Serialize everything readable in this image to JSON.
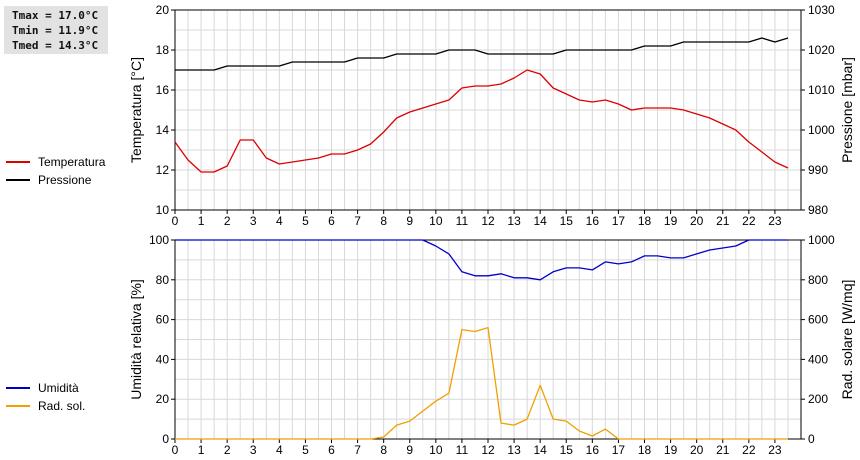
{
  "stats": {
    "tmax": "Tmax = 17.0°C",
    "tmin": "Tmin = 11.9°C",
    "tmed": "Tmed = 14.3°C"
  },
  "chart_data": [
    {
      "type": "line",
      "title": "",
      "xlabel": "",
      "x_ticks": [
        "0",
        "1",
        "2",
        "3",
        "4",
        "5",
        "6",
        "7",
        "8",
        "9",
        "10",
        "11",
        "12",
        "13",
        "14",
        "15",
        "16",
        "17",
        "18",
        "19",
        "20",
        "21",
        "22",
        "23"
      ],
      "xlim": [
        0,
        24
      ],
      "ylabel_left": "Temperatura [°C]",
      "ylim_left": [
        10,
        20
      ],
      "y_ticks_left": [
        "10",
        "12",
        "14",
        "16",
        "18",
        "20"
      ],
      "ylabel_right": "Pressione [mbar]",
      "ylim_right": [
        980,
        1030
      ],
      "y_ticks_right": [
        "980",
        "990",
        "1000",
        "1010",
        "1020",
        "1030"
      ],
      "grid": true,
      "legend_position": "left",
      "series": [
        {
          "name": "Temperatura",
          "color": "#dd0000",
          "axis": "left",
          "x": [
            0,
            0.5,
            1,
            1.5,
            2,
            2.5,
            3,
            3.5,
            4,
            4.5,
            5,
            5.5,
            6,
            6.5,
            7,
            7.5,
            8,
            8.5,
            9,
            9.5,
            10,
            10.5,
            11,
            11.5,
            12,
            12.5,
            13,
            13.5,
            14,
            14.5,
            15,
            15.5,
            16,
            16.5,
            17,
            17.5,
            18,
            18.5,
            19,
            19.5,
            20,
            20.5,
            21,
            21.5,
            22,
            22.5,
            23,
            23.5
          ],
          "y": [
            13.4,
            12.5,
            11.9,
            11.9,
            12.2,
            13.5,
            13.5,
            12.6,
            12.3,
            12.4,
            12.5,
            12.6,
            12.8,
            12.8,
            13.0,
            13.3,
            13.9,
            14.6,
            14.9,
            15.1,
            15.3,
            15.5,
            16.1,
            16.2,
            16.2,
            16.3,
            16.6,
            17.0,
            16.8,
            16.1,
            15.8,
            15.5,
            15.4,
            15.5,
            15.3,
            15.0,
            15.1,
            15.1,
            15.1,
            15.0,
            14.8,
            14.6,
            14.3,
            14.0,
            13.4,
            12.9,
            12.4,
            12.1
          ]
        },
        {
          "name": "Pressione",
          "color": "#000000",
          "axis": "right",
          "x": [
            0,
            0.5,
            1,
            1.5,
            2,
            2.5,
            3,
            3.5,
            4,
            4.5,
            5,
            5.5,
            6,
            6.5,
            7,
            7.5,
            8,
            8.5,
            9,
            9.5,
            10,
            10.5,
            11,
            11.5,
            12,
            12.5,
            13,
            13.5,
            14,
            14.5,
            15,
            15.5,
            16,
            16.5,
            17,
            17.5,
            18,
            18.5,
            19,
            19.5,
            20,
            20.5,
            21,
            21.5,
            22,
            22.5,
            23,
            23.5
          ],
          "y": [
            1015,
            1015,
            1015,
            1015,
            1016,
            1016,
            1016,
            1016,
            1016,
            1017,
            1017,
            1017,
            1017,
            1017,
            1018,
            1018,
            1018,
            1019,
            1019,
            1019,
            1019,
            1020,
            1020,
            1020,
            1019,
            1019,
            1019,
            1019,
            1019,
            1019,
            1020,
            1020,
            1020,
            1020,
            1020,
            1020,
            1021,
            1021,
            1021,
            1022,
            1022,
            1022,
            1022,
            1022,
            1022,
            1023,
            1022,
            1023
          ]
        }
      ]
    },
    {
      "type": "line",
      "title": "",
      "xlabel": "",
      "x_ticks": [
        "0",
        "1",
        "2",
        "3",
        "4",
        "5",
        "6",
        "7",
        "8",
        "9",
        "10",
        "11",
        "12",
        "13",
        "14",
        "15",
        "16",
        "17",
        "18",
        "19",
        "20",
        "21",
        "22",
        "23"
      ],
      "xlim": [
        0,
        24
      ],
      "ylabel_left": "Umidità relativa [%]",
      "ylim_left": [
        0,
        100
      ],
      "y_ticks_left": [
        "0",
        "20",
        "40",
        "60",
        "80",
        "100"
      ],
      "ylabel_right": "Rad. solare [W/mq]",
      "ylim_right": [
        0,
        1000
      ],
      "y_ticks_right": [
        "0",
        "200",
        "400",
        "600",
        "800",
        "1000"
      ],
      "grid": true,
      "legend_position": "left",
      "series": [
        {
          "name": "Umidità",
          "color": "#0000cc",
          "axis": "left",
          "x": [
            0,
            0.5,
            1,
            1.5,
            2,
            2.5,
            3,
            3.5,
            4,
            4.5,
            5,
            5.5,
            6,
            6.5,
            7,
            7.5,
            8,
            8.5,
            9,
            9.5,
            10,
            10.5,
            11,
            11.5,
            12,
            12.5,
            13,
            13.5,
            14,
            14.5,
            15,
            15.5,
            16,
            16.5,
            17,
            17.5,
            18,
            18.5,
            19,
            19.5,
            20,
            20.5,
            21,
            21.5,
            22,
            22.5,
            23,
            23.5
          ],
          "y": [
            100,
            100,
            100,
            100,
            100,
            100,
            100,
            100,
            100,
            100,
            100,
            100,
            100,
            100,
            100,
            100,
            100,
            100,
            100,
            100,
            97,
            93,
            84,
            82,
            82,
            83,
            81,
            81,
            80,
            84,
            86,
            86,
            85,
            89,
            88,
            89,
            92,
            92,
            91,
            91,
            93,
            95,
            96,
            97,
            100,
            100,
            100,
            100
          ]
        },
        {
          "name": "Rad. sol.",
          "color": "#f0a000",
          "axis": "right",
          "x": [
            0,
            0.5,
            1,
            1.5,
            2,
            2.5,
            3,
            3.5,
            4,
            4.5,
            5,
            5.5,
            6,
            6.5,
            7,
            7.5,
            8,
            8.5,
            9,
            9.5,
            10,
            10.5,
            11,
            11.5,
            12,
            12.5,
            13,
            13.5,
            14,
            14.5,
            15,
            15.5,
            16,
            16.5,
            17,
            17.5,
            18,
            18.5,
            19,
            19.5,
            20,
            20.5,
            21,
            21.5,
            22,
            22.5,
            23,
            23.5
          ],
          "y": [
            0,
            0,
            0,
            0,
            0,
            0,
            0,
            0,
            0,
            0,
            0,
            0,
            0,
            0,
            0,
            0,
            10,
            70,
            90,
            140,
            190,
            230,
            550,
            540,
            560,
            80,
            70,
            100,
            270,
            100,
            90,
            40,
            15,
            50,
            0,
            0,
            0,
            0,
            0,
            0,
            0,
            0,
            0,
            0,
            0,
            0,
            0,
            0
          ]
        }
      ]
    }
  ]
}
